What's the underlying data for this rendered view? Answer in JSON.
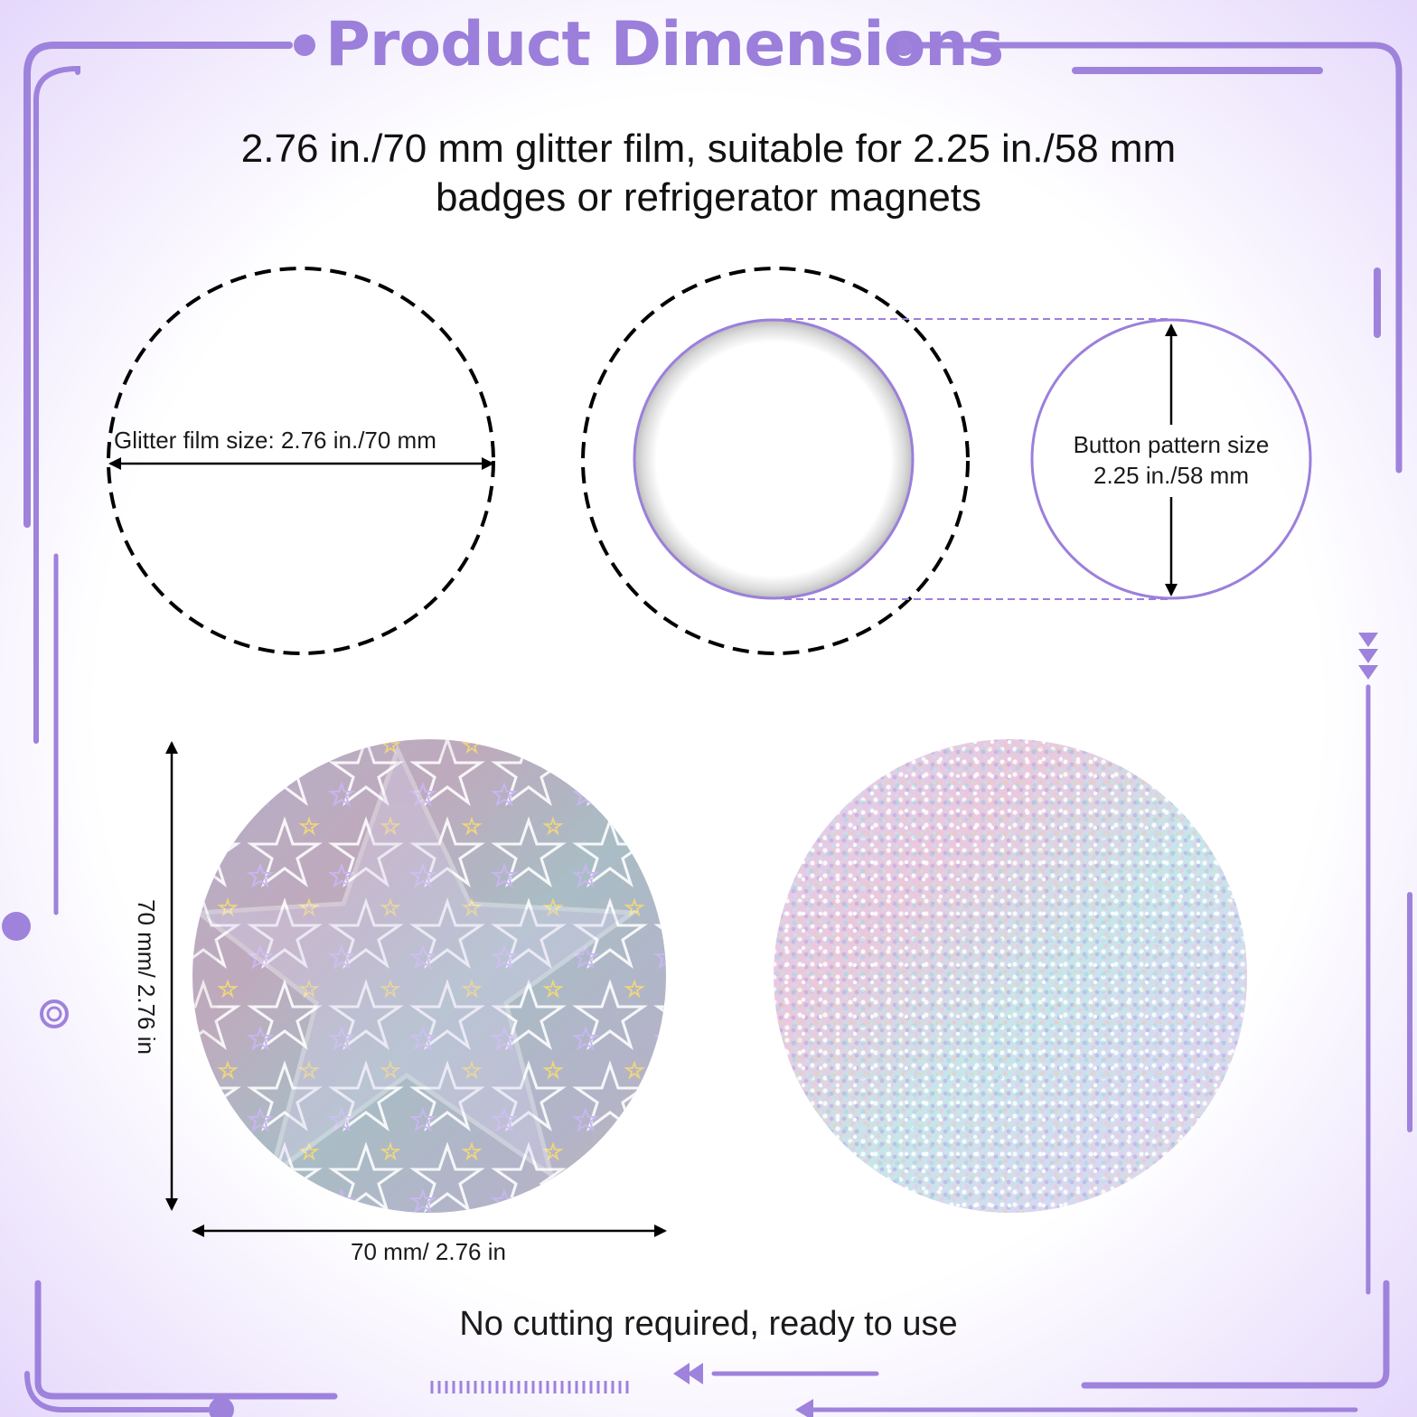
{
  "header": {
    "title": "Product Dimensions"
  },
  "description": {
    "line1": "2.76 in./70 mm glitter film, suitable for 2.25 in./58 mm",
    "line2": "badges or refrigerator magnets"
  },
  "film_diagram": {
    "label": "Glitter film size: 2.76 in./70 mm"
  },
  "button_diagram": {
    "label_line1": "Button pattern size",
    "label_line2": "2.25 in./58 mm"
  },
  "star_sample": {
    "height_label": "70 mm/ 2.76 in",
    "width_label": "70 mm/ 2.76 in"
  },
  "footer": {
    "note": "No cutting required, ready to use"
  },
  "colors": {
    "accent": "#9b7fdb",
    "frame": "#a88ae0",
    "background_tint": "#e6dbfb",
    "text": "#1a1a1a"
  }
}
